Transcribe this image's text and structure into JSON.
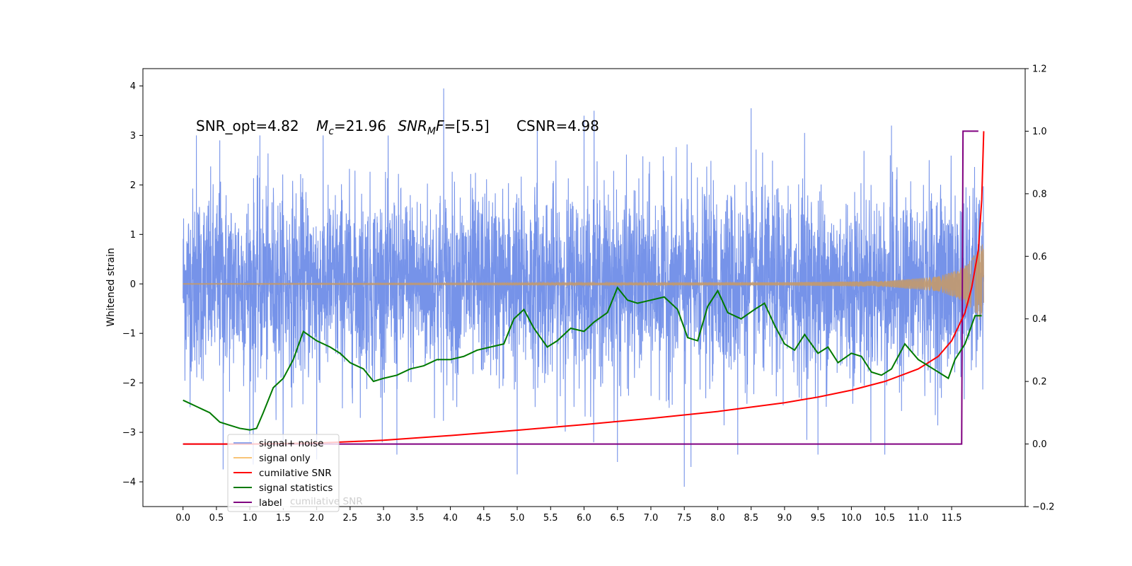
{
  "chart_data": {
    "type": "line",
    "title": "",
    "xlabel": "",
    "ylabel": "Whitened strain",
    "xlim": [
      -0.6,
      12.6
    ],
    "ylim": [
      -4.5,
      4.35
    ],
    "y2lim": [
      -0.2,
      1.2
    ],
    "x_ticks": [
      "0.0",
      "0.5",
      "1.0",
      "1.5",
      "2.0",
      "2.5",
      "3.0",
      "3.5",
      "4.0",
      "4.5",
      "5.0",
      "5.5",
      "6.0",
      "6.5",
      "7.0",
      "7.5",
      "8.0",
      "8.5",
      "9.0",
      "9.5",
      "10.0",
      "10.5",
      "11.0",
      "11.5"
    ],
    "y_ticks": [
      "4",
      "3",
      "2",
      "1",
      "0",
      "−1",
      "−2",
      "−3",
      "−4"
    ],
    "y2_ticks": [
      "1.2",
      "1.0",
      "0.8",
      "0.6",
      "0.4",
      "0.2",
      "0.0",
      "−0.2"
    ],
    "annotations": {
      "snr_opt": "SNR_opt=4.82",
      "mc_symbol": "M",
      "mc_sub": "c",
      "mc_value": "=21.96",
      "snrmf_symbol": "SNR",
      "snrmf_sub": "M",
      "snrmf_f": "F",
      "snrmf_value": "=[5.5]",
      "csnr": "CSNR=4.98"
    },
    "legend_placement": "lower-left",
    "legend": [
      "signal+ noise",
      "signal only",
      "cumilative SNR",
      "signal statistics",
      "label"
    ],
    "legend_hidden_text": "cumilative SNR",
    "colors": {
      "signal_noise": "#6f8de8",
      "signal_only": "#f5b04a",
      "cumulative_snr": "#ff0000",
      "signal_statistics": "#007a00",
      "label": "#800080",
      "signal_envelope": "#c49a6c"
    },
    "series": [
      {
        "name": "signal+ noise",
        "axis": "left",
        "description": "whitened noisy time series, roughly gaussian with std ~1, spanning x 0.0 to 11.98",
        "peaks": [
          [
            0.2,
            3.0
          ],
          [
            0.55,
            2.9
          ],
          [
            1.15,
            3.0
          ],
          [
            3.9,
            3.95
          ],
          [
            5.3,
            3.2
          ],
          [
            6.0,
            3.4
          ],
          [
            6.15,
            3.5
          ],
          [
            8.5,
            3.55
          ],
          [
            9.3,
            3.05
          ],
          [
            10.6,
            3.2
          ]
        ],
        "troughs": [
          [
            0.6,
            -3.75
          ],
          [
            1.05,
            -3.65
          ],
          [
            2.0,
            -3.55
          ],
          [
            3.2,
            -3.45
          ],
          [
            5.0,
            -3.85
          ],
          [
            6.5,
            -3.6
          ],
          [
            7.5,
            -4.1
          ],
          [
            7.6,
            -3.7
          ],
          [
            8.3,
            -3.45
          ],
          [
            9.5,
            -3.45
          ],
          [
            10.5,
            -3.45
          ]
        ]
      },
      {
        "name": "signal only",
        "axis": "left",
        "description": "chirp signal near zero, amplitude growing toward merger at x ~11.98",
        "amplitude_points": [
          [
            0.0,
            0.01
          ],
          [
            9.0,
            0.03
          ],
          [
            10.5,
            0.06
          ],
          [
            11.3,
            0.15
          ],
          [
            11.6,
            0.3
          ],
          [
            11.8,
            0.5
          ],
          [
            11.95,
            0.8
          ]
        ]
      },
      {
        "name": "cumilative SNR",
        "axis": "right",
        "x": [
          0.0,
          1.0,
          2.0,
          3.0,
          4.0,
          5.0,
          6.0,
          7.0,
          8.0,
          9.0,
          9.5,
          10.0,
          10.5,
          11.0,
          11.3,
          11.5,
          11.7,
          11.8,
          11.9,
          11.95,
          11.98
        ],
        "values": [
          0.0,
          0.0,
          0.003,
          0.012,
          0.027,
          0.044,
          0.062,
          0.082,
          0.104,
          0.132,
          0.15,
          0.172,
          0.2,
          0.24,
          0.28,
          0.33,
          0.42,
          0.5,
          0.62,
          0.78,
          1.0
        ]
      },
      {
        "name": "signal statistics",
        "axis": "right",
        "x": [
          0.0,
          0.1,
          0.2,
          0.3,
          0.4,
          0.55,
          0.7,
          0.85,
          1.0,
          1.1,
          1.2,
          1.35,
          1.5,
          1.65,
          1.8,
          2.0,
          2.2,
          2.35,
          2.5,
          2.7,
          2.85,
          3.0,
          3.2,
          3.4,
          3.6,
          3.8,
          4.0,
          4.2,
          4.4,
          4.6,
          4.8,
          4.95,
          5.1,
          5.25,
          5.45,
          5.6,
          5.8,
          6.0,
          6.15,
          6.35,
          6.5,
          6.65,
          6.8,
          7.0,
          7.2,
          7.4,
          7.55,
          7.7,
          7.85,
          8.0,
          8.15,
          8.35,
          8.55,
          8.7,
          8.85,
          9.0,
          9.15,
          9.3,
          9.5,
          9.65,
          9.8,
          10.0,
          10.15,
          10.3,
          10.45,
          10.6,
          10.8,
          11.0,
          11.15,
          11.3,
          11.45,
          11.55,
          11.7,
          11.85,
          11.95
        ],
        "values": [
          0.14,
          0.13,
          0.12,
          0.11,
          0.1,
          0.07,
          0.06,
          0.05,
          0.045,
          0.05,
          0.1,
          0.18,
          0.21,
          0.27,
          0.36,
          0.33,
          0.31,
          0.29,
          0.26,
          0.24,
          0.2,
          0.21,
          0.22,
          0.24,
          0.25,
          0.27,
          0.27,
          0.28,
          0.3,
          0.31,
          0.32,
          0.4,
          0.43,
          0.37,
          0.31,
          0.33,
          0.37,
          0.36,
          0.39,
          0.42,
          0.5,
          0.46,
          0.45,
          0.46,
          0.47,
          0.43,
          0.34,
          0.33,
          0.44,
          0.49,
          0.42,
          0.4,
          0.43,
          0.45,
          0.38,
          0.32,
          0.3,
          0.35,
          0.29,
          0.31,
          0.26,
          0.29,
          0.28,
          0.23,
          0.22,
          0.24,
          0.32,
          0.27,
          0.25,
          0.23,
          0.21,
          0.27,
          0.32,
          0.41,
          0.41
        ]
      },
      {
        "name": "label",
        "axis": "right",
        "x": [
          0.0,
          11.65,
          11.67,
          11.9
        ],
        "values": [
          0.0,
          0.0,
          1.0,
          1.0
        ]
      }
    ]
  }
}
